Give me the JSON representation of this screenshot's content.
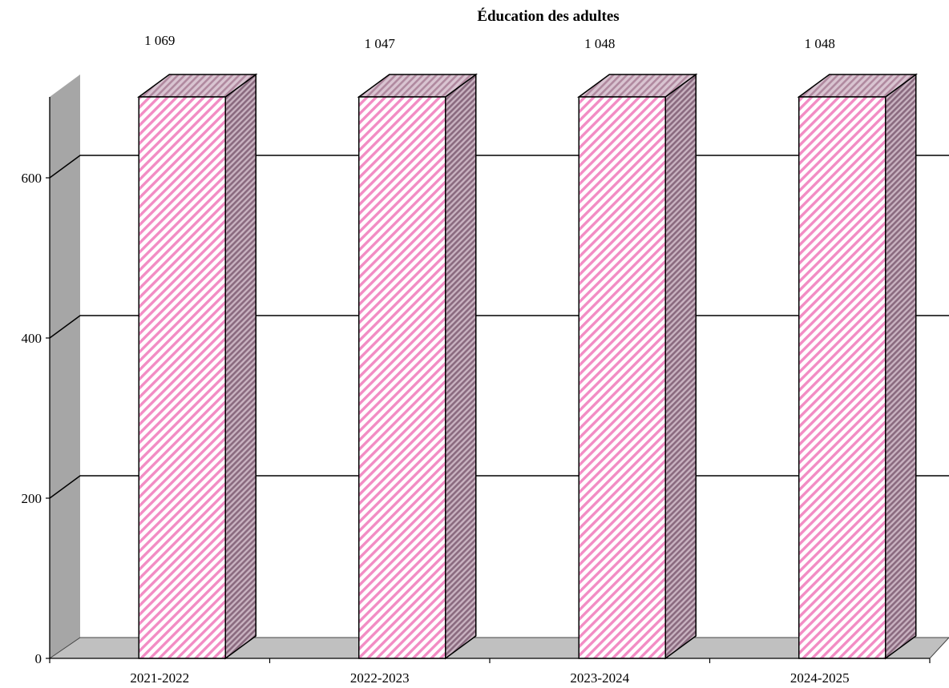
{
  "chart_data": {
    "type": "bar",
    "style": "3d-column",
    "title": "Éducation des adultes",
    "categories": [
      "2021-2022",
      "2022-2023",
      "2023-2024",
      "2024-2025"
    ],
    "values": [
      1069,
      1047,
      1048,
      1048
    ],
    "data_labels": [
      "1 069",
      "1 047",
      "1 048",
      "1 048"
    ],
    "yticks": [
      {
        "value": 0,
        "label": "0"
      },
      {
        "value": 200,
        "label": "200"
      },
      {
        "value": 400,
        "label": "400"
      },
      {
        "value": 600,
        "label": "600"
      }
    ],
    "ylim": [
      0,
      600
    ],
    "ylim_note": "axis max clipped; bars exceed plot top",
    "xlabel": "",
    "ylabel": "",
    "grid": true,
    "colors": {
      "bar_front_stripe": "#f28cc4",
      "bar_side": "#a3879a",
      "wall": "#a6a6a6",
      "floor": "#c0c0c0"
    }
  }
}
